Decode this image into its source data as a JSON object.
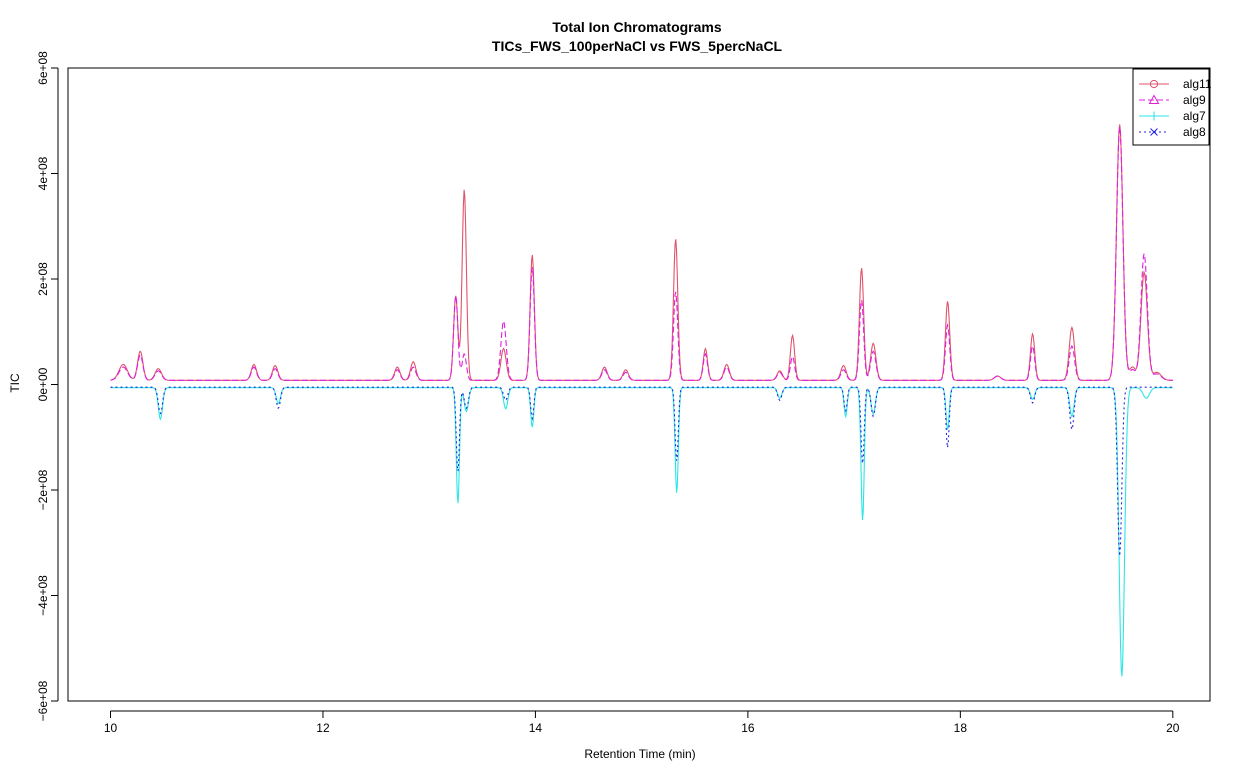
{
  "chart_data": {
    "type": "line",
    "title": "Total Ion Chromatograms",
    "subtitle": "TICs_FWS_100perNaCl vs FWS_5percNaCL",
    "xlabel": "Retention Time (min)",
    "ylabel": "TIC",
    "xlim": [
      9.6,
      20.35
    ],
    "ylim": [
      -600000000,
      600000000
    ],
    "x_ticks": [
      10,
      12,
      14,
      16,
      18,
      20
    ],
    "x_tick_labels": [
      "10",
      "12",
      "14",
      "16",
      "18",
      "20"
    ],
    "y_ticks": [
      -600000000,
      -400000000,
      -200000000,
      0,
      200000000,
      400000000,
      600000000
    ],
    "y_tick_labels": [
      "−6e+08",
      "−4e+08",
      "−2e+08",
      "0e+00",
      "2e+08",
      "4e+08",
      "6e+08"
    ],
    "legend_position": "top-right",
    "grid": false,
    "series": [
      {
        "name": "alg11",
        "color": "#DF536B",
        "dash": "",
        "marker": "circle",
        "baseline": 8000000,
        "peaks": [
          [
            10.12,
            30000000,
            0.04
          ],
          [
            10.28,
            55000000,
            0.025
          ],
          [
            10.45,
            22000000,
            0.03
          ],
          [
            11.35,
            30000000,
            0.025
          ],
          [
            11.55,
            28000000,
            0.025
          ],
          [
            12.7,
            25000000,
            0.025
          ],
          [
            12.85,
            35000000,
            0.025
          ],
          [
            13.25,
            160000000,
            0.02
          ],
          [
            13.33,
            362000000,
            0.02
          ],
          [
            13.7,
            60000000,
            0.025
          ],
          [
            13.97,
            238000000,
            0.02
          ],
          [
            14.65,
            25000000,
            0.025
          ],
          [
            14.85,
            20000000,
            0.025
          ],
          [
            15.32,
            268000000,
            0.02
          ],
          [
            15.6,
            60000000,
            0.02
          ],
          [
            15.8,
            30000000,
            0.025
          ],
          [
            16.3,
            18000000,
            0.025
          ],
          [
            16.42,
            85000000,
            0.02
          ],
          [
            16.9,
            28000000,
            0.025
          ],
          [
            17.07,
            213000000,
            0.02
          ],
          [
            17.18,
            70000000,
            0.025
          ],
          [
            17.88,
            150000000,
            0.02
          ],
          [
            18.35,
            8000000,
            0.03
          ],
          [
            18.68,
            88000000,
            0.02
          ],
          [
            19.05,
            100000000,
            0.025
          ],
          [
            19.5,
            485000000,
            0.03
          ],
          [
            19.62,
            25000000,
            0.03
          ],
          [
            19.73,
            205000000,
            0.03
          ],
          [
            19.85,
            15000000,
            0.04
          ]
        ]
      },
      {
        "name": "alg9",
        "color": "#DF1FDF",
        "dash": "6 3",
        "marker": "triangle",
        "baseline": 8000000,
        "peaks": [
          [
            10.12,
            25000000,
            0.04
          ],
          [
            10.28,
            48000000,
            0.025
          ],
          [
            10.45,
            18000000,
            0.03
          ],
          [
            11.35,
            25000000,
            0.025
          ],
          [
            11.55,
            22000000,
            0.025
          ],
          [
            12.7,
            20000000,
            0.025
          ],
          [
            12.85,
            25000000,
            0.025
          ],
          [
            13.25,
            160000000,
            0.02
          ],
          [
            13.33,
            50000000,
            0.02
          ],
          [
            13.7,
            112000000,
            0.025
          ],
          [
            13.97,
            215000000,
            0.02
          ],
          [
            14.65,
            20000000,
            0.025
          ],
          [
            14.85,
            15000000,
            0.025
          ],
          [
            15.32,
            168000000,
            0.02
          ],
          [
            15.6,
            50000000,
            0.02
          ],
          [
            15.8,
            25000000,
            0.025
          ],
          [
            16.3,
            15000000,
            0.025
          ],
          [
            16.42,
            45000000,
            0.02
          ],
          [
            16.9,
            20000000,
            0.025
          ],
          [
            17.07,
            152000000,
            0.02
          ],
          [
            17.18,
            55000000,
            0.025
          ],
          [
            17.88,
            105000000,
            0.02
          ],
          [
            18.35,
            8000000,
            0.03
          ],
          [
            18.68,
            65000000,
            0.02
          ],
          [
            19.05,
            65000000,
            0.025
          ],
          [
            19.5,
            480000000,
            0.03
          ],
          [
            19.62,
            20000000,
            0.03
          ],
          [
            19.73,
            240000000,
            0.03
          ],
          [
            19.85,
            12000000,
            0.04
          ]
        ]
      },
      {
        "name": "alg7",
        "color": "#2CE5E5",
        "dash": "",
        "marker": "plus",
        "baseline": -6000000,
        "peaks": [
          [
            10.47,
            -60000000,
            0.02
          ],
          [
            11.58,
            -30000000,
            0.02
          ],
          [
            13.27,
            -220000000,
            0.015
          ],
          [
            13.35,
            -45000000,
            0.02
          ],
          [
            13.72,
            -40000000,
            0.02
          ],
          [
            13.97,
            -75000000,
            0.015
          ],
          [
            15.33,
            -200000000,
            0.015
          ],
          [
            16.3,
            -20000000,
            0.02
          ],
          [
            16.92,
            -55000000,
            0.015
          ],
          [
            17.08,
            -252000000,
            0.015
          ],
          [
            17.18,
            -50000000,
            0.02
          ],
          [
            17.88,
            -80000000,
            0.015
          ],
          [
            18.68,
            -22000000,
            0.02
          ],
          [
            19.05,
            -55000000,
            0.02
          ],
          [
            19.52,
            -548000000,
            0.025
          ],
          [
            19.75,
            -20000000,
            0.03
          ]
        ]
      },
      {
        "name": "alg8",
        "color": "#2222DD",
        "dash": "2 3",
        "marker": "x",
        "baseline": -5000000,
        "peaks": [
          [
            10.47,
            -50000000,
            0.02
          ],
          [
            11.58,
            -40000000,
            0.02
          ],
          [
            13.27,
            -160000000,
            0.015
          ],
          [
            13.35,
            -40000000,
            0.02
          ],
          [
            13.72,
            -25000000,
            0.02
          ],
          [
            13.97,
            -60000000,
            0.015
          ],
          [
            15.33,
            -140000000,
            0.015
          ],
          [
            16.3,
            -25000000,
            0.02
          ],
          [
            16.92,
            -45000000,
            0.015
          ],
          [
            17.08,
            -145000000,
            0.015
          ],
          [
            17.18,
            -55000000,
            0.02
          ],
          [
            17.88,
            -115000000,
            0.015
          ],
          [
            18.68,
            -30000000,
            0.02
          ],
          [
            19.05,
            -80000000,
            0.02
          ],
          [
            19.5,
            -320000000,
            0.02
          ]
        ]
      }
    ]
  }
}
